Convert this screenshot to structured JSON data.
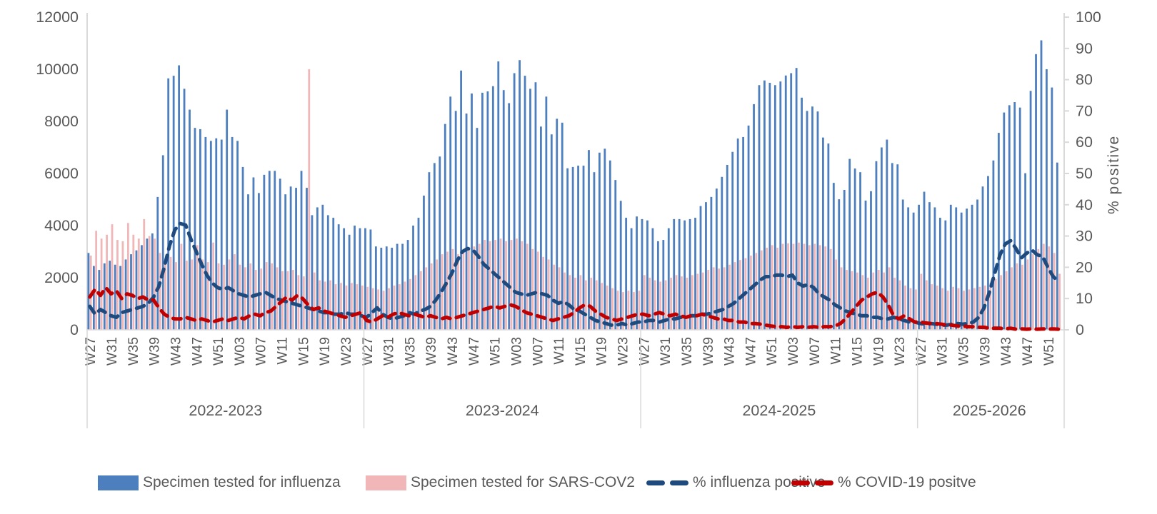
{
  "chart_data": {
    "type": "combo-bar-line",
    "title": "",
    "left_axis": {
      "min": 0,
      "max": 12000,
      "tick_step": 2000,
      "ticks": [
        "0",
        "2000",
        "4000",
        "6000",
        "8000",
        "10000",
        "12000"
      ]
    },
    "right_axis": {
      "label": "% positive",
      "min": 0,
      "max": 100,
      "tick_step": 10,
      "ticks": [
        "0",
        "10",
        "20",
        "30",
        "40",
        "50",
        "60",
        "70",
        "80",
        "90",
        "100"
      ]
    },
    "x_label_step": 4,
    "legend": [
      {
        "label": "Specimen tested for influenza",
        "type": "bar",
        "color": "#4d7ebd"
      },
      {
        "label": "Specimen tested for SARS-COV2",
        "type": "bar",
        "color": "#f0b6b8"
      },
      {
        "label": "% influenza positive",
        "type": "line",
        "color": "#1f4a7d"
      },
      {
        "label": "% COVID-19 positve",
        "type": "line",
        "color": "#c00000"
      }
    ],
    "seasons": [
      {
        "label": "2022-2023",
        "week_labels": [
          "W27",
          "W31",
          "W35",
          "W39",
          "W43",
          "W47",
          "W51",
          "W03",
          "W07",
          "W11",
          "W15",
          "W19",
          "W23"
        ],
        "influenza_tested": [
          2950,
          2450,
          2300,
          2550,
          2650,
          2500,
          2450,
          2700,
          2900,
          3050,
          3250,
          3500,
          3700,
          5100,
          6700,
          9650,
          9750,
          10150,
          9250,
          8450,
          7750,
          7700,
          7400,
          7250,
          7350,
          7300,
          8450,
          7400,
          7250,
          6250,
          5200,
          5850,
          5250,
          5950,
          6100,
          6100,
          5800,
          5200,
          5500,
          5450,
          6100,
          5450,
          4400,
          4700,
          4800,
          4400,
          4300,
          4050,
          3900,
          3650,
          4000,
          3900
        ],
        "sars_cov2_tested": [
          2850,
          3800,
          3500,
          3650,
          4050,
          3450,
          3400,
          4100,
          3650,
          3500,
          4250,
          3600,
          3500,
          2950,
          2700,
          2800,
          2600,
          3300,
          2650,
          2700,
          3250,
          2700,
          2600,
          3350,
          2550,
          2500,
          2700,
          2900,
          2500,
          2400,
          2550,
          2300,
          2350,
          2600,
          2550,
          2400,
          2250,
          2250,
          2300,
          2100,
          2050,
          10000,
          2200,
          1900,
          1850,
          1900,
          1750,
          1800,
          1700,
          1800,
          1750,
          1700
        ],
        "pct_influenza_positive": [
          7.5,
          5,
          6.5,
          5.5,
          4.5,
          4,
          5.5,
          6,
          6.5,
          7,
          7.5,
          8.5,
          10.5,
          14,
          20,
          27,
          32,
          34,
          33.5,
          29,
          25,
          21,
          17.5,
          15,
          13.5,
          13,
          13.5,
          12.5,
          11.5,
          11,
          10.5,
          11,
          11.5,
          12,
          11,
          10,
          9.5,
          9,
          8.5,
          8,
          7.5,
          7,
          6.5,
          6,
          5.5,
          5.5,
          5,
          5,
          5.5,
          5,
          5,
          4.5
        ],
        "pct_covid_positive": [
          10.5,
          13,
          11,
          13.5,
          11.5,
          12.5,
          10,
          11.5,
          11,
          10,
          10.5,
          9.5,
          9.5,
          7,
          5,
          4,
          3.5,
          3.5,
          4,
          3.5,
          3,
          3.5,
          3,
          2.5,
          3,
          3.5,
          3,
          3.5,
          4,
          3.5,
          4.5,
          5,
          4.5,
          5.5,
          6,
          7.5,
          9,
          10.5,
          9.5,
          11,
          10,
          8,
          6.5,
          7,
          6,
          5.5,
          5,
          4.5,
          4,
          4.5,
          5,
          5.5
        ]
      },
      {
        "label": "2023-2024",
        "week_labels": [
          "W27",
          "W31",
          "W35",
          "W39",
          "W43",
          "W47",
          "W51",
          "W03",
          "W07",
          "W11",
          "W15",
          "W19",
          "W23"
        ],
        "influenza_tested": [
          3900,
          3850,
          3200,
          3150,
          3200,
          3150,
          3300,
          3300,
          3450,
          4000,
          4300,
          5150,
          6050,
          6400,
          6650,
          7900,
          8950,
          8400,
          9950,
          8300,
          9070,
          7750,
          9100,
          9150,
          9350,
          10300,
          9200,
          8700,
          9850,
          10350,
          9750,
          9250,
          9500,
          7800,
          8950,
          7500,
          8100,
          7950,
          6200,
          6250,
          6300,
          6300,
          6900,
          6050,
          6800,
          6950,
          6500,
          5750,
          4950,
          4300,
          3900,
          4350
        ],
        "sars_cov2_tested": [
          1650,
          1600,
          1550,
          1500,
          1600,
          1700,
          1750,
          1850,
          1950,
          2100,
          2250,
          2400,
          2550,
          2700,
          2900,
          3000,
          3100,
          2900,
          3000,
          3100,
          3200,
          3300,
          3450,
          3400,
          3450,
          3500,
          3400,
          3450,
          3500,
          3400,
          3300,
          3100,
          3000,
          2800,
          2700,
          2500,
          2400,
          2200,
          2100,
          2000,
          2100,
          1900,
          2000,
          1900,
          1800,
          1700,
          1600,
          1500,
          1450,
          1500,
          1450,
          1500
        ],
        "pct_influenza_positive": [
          4,
          5.5,
          7,
          5,
          4,
          3.5,
          4,
          4.5,
          5.5,
          5,
          6,
          6.5,
          7.5,
          9.5,
          12,
          15,
          18,
          22,
          25,
          26,
          25.5,
          23.5,
          21,
          19.5,
          18,
          16.5,
          15,
          13.5,
          12,
          11.5,
          11,
          11.5,
          12,
          11.5,
          11,
          9.5,
          8.5,
          9,
          8,
          6.5,
          6,
          5,
          4,
          3,
          2.5,
          2,
          1.5,
          1.5,
          2,
          1.5,
          2,
          2.5
        ],
        "pct_covid_positive": [
          3,
          2.5,
          3.5,
          4.5,
          4,
          5,
          5.5,
          5,
          4.5,
          5,
          4.5,
          4,
          4.5,
          4,
          3.5,
          4,
          3.5,
          4,
          4.5,
          5,
          5.5,
          6,
          6.5,
          7,
          7.5,
          7,
          7.5,
          8,
          7.5,
          6.5,
          5.5,
          5,
          4.5,
          4,
          3.5,
          3,
          3.5,
          4,
          4.5,
          5.5,
          7,
          8,
          7.5,
          6,
          5,
          4,
          3.5,
          3,
          3.5,
          4,
          4.5,
          5
        ]
      },
      {
        "label": "2024-2025",
        "week_labels": [
          "W27",
          "W31",
          "W35",
          "W39",
          "W43",
          "W47",
          "W51",
          "W03",
          "W07",
          "W11",
          "W15",
          "W19",
          "W23"
        ],
        "influenza_tested": [
          4250,
          4200,
          3900,
          3400,
          3450,
          3900,
          4250,
          4250,
          4200,
          4250,
          4300,
          4750,
          4900,
          5100,
          5420,
          5870,
          6330,
          6830,
          7340,
          7400,
          7840,
          8660,
          9390,
          9570,
          9480,
          9390,
          9530,
          9760,
          9850,
          10050,
          8910,
          8400,
          8570,
          8380,
          7380,
          7150,
          5640,
          5010,
          5370,
          6560,
          6190,
          6050,
          4960,
          5320,
          6470,
          7000,
          7300,
          6400,
          6350,
          5000,
          4700,
          4500
        ],
        "sars_cov2_tested": [
          2100,
          2000,
          1900,
          1850,
          1900,
          2000,
          2100,
          2050,
          2000,
          2100,
          2150,
          2200,
          2300,
          2400,
          2350,
          2400,
          2500,
          2600,
          2680,
          2750,
          2850,
          2950,
          3050,
          3150,
          3250,
          3150,
          3300,
          3320,
          3300,
          3350,
          3300,
          3250,
          3300,
          3250,
          3200,
          3100,
          2700,
          2400,
          2300,
          2250,
          2200,
          2100,
          2000,
          2200,
          2300,
          2200,
          2400,
          2000,
          1900,
          1700,
          1600,
          1550
        ],
        "pct_influenza_positive": [
          2.5,
          3,
          3,
          2.5,
          3,
          3.5,
          3.5,
          4,
          4,
          4.5,
          4.5,
          5,
          5,
          5.5,
          6,
          6.5,
          7.5,
          8.5,
          10,
          11.5,
          13,
          14.5,
          16,
          17,
          17,
          17.5,
          17.5,
          17,
          17.5,
          15,
          14,
          14.5,
          13.5,
          11.5,
          10.5,
          9.5,
          8,
          7,
          6,
          5.5,
          5,
          4.5,
          4.5,
          4,
          4,
          3.5,
          3.5,
          4,
          3.5,
          3,
          2.5,
          2.5
        ],
        "pct_covid_positive": [
          5,
          4.5,
          5,
          5.5,
          5,
          4.5,
          5,
          4.5,
          4,
          4.5,
          4.5,
          5,
          4.5,
          4,
          3.5,
          3.5,
          3,
          3,
          2.5,
          2.5,
          2,
          2,
          1.8,
          1.5,
          1.2,
          1,
          1,
          0.8,
          1,
          0.8,
          1,
          0.8,
          1,
          0.8,
          1,
          1,
          1.2,
          2,
          3.5,
          5.5,
          7.5,
          9.5,
          10.5,
          11.5,
          12,
          10.5,
          8,
          4.5,
          3.5,
          4.5,
          3.5,
          2.5
        ]
      },
      {
        "label": "2025-2026",
        "week_labels": [
          "W27",
          "W31",
          "W35",
          "W39",
          "W43",
          "W47",
          "W51"
        ],
        "influenza_tested": [
          4800,
          5300,
          4900,
          4700,
          4300,
          4200,
          4800,
          4700,
          4500,
          4650,
          4800,
          5000,
          5500,
          5900,
          6500,
          7560,
          8340,
          8620,
          8740,
          8530,
          6010,
          9170,
          10580,
          11110,
          10000,
          9300,
          6420
        ],
        "sars_cov2_tested": [
          2150,
          1900,
          1750,
          1700,
          1600,
          1500,
          1650,
          1600,
          1500,
          1550,
          1600,
          1650,
          1700,
          1800,
          1950,
          2100,
          2250,
          2400,
          2550,
          2500,
          2700,
          2900,
          3100,
          3300,
          3200,
          2950,
          2150
        ],
        "pct_influenza_positive": [
          2,
          1.8,
          2,
          1.8,
          1.5,
          1.5,
          1.8,
          2,
          1.8,
          2,
          2.5,
          4,
          7,
          12,
          18,
          24,
          27.5,
          28.5,
          26,
          23,
          24.5,
          25.5,
          24,
          23.5,
          20,
          17,
          15.5
        ],
        "pct_covid_positive": [
          2.5,
          2.2,
          2,
          2,
          1.8,
          1.5,
          1.5,
          1.2,
          1.2,
          1,
          1,
          0.8,
          0.8,
          0.5,
          0.5,
          0.5,
          0.3,
          0.5,
          0.2,
          0.3,
          0.2,
          0.3,
          0.2,
          0.3,
          0.2,
          0.3,
          0.2
        ]
      }
    ]
  }
}
